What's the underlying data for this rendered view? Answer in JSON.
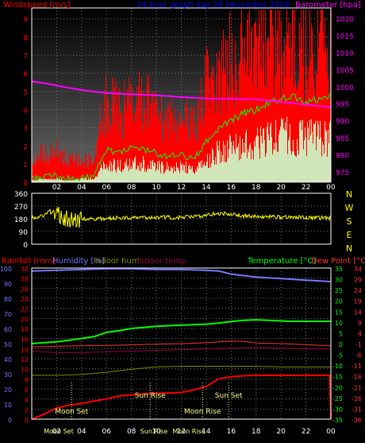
{
  "colors": {
    "wind": "#ff0000",
    "gust_fill": "#ff0000",
    "avg_wind": "#00ff00",
    "wind_white": "#ccffcc",
    "pressure": "#ff00ff",
    "direction": "#ffff00",
    "humidity": "#7777ff",
    "indoor_hum": "#888800",
    "indoor_temp": "#990044",
    "temperature": "#00ff00",
    "dewpoint": "#ff3333",
    "rainfall": "#ff0000",
    "title_blue": "#0000ff",
    "axis_text": "#ffffff",
    "moon_sun": "#ffff88"
  },
  "chart_data": [
    {
      "type": "line",
      "id": "wind_pressure",
      "title": "24-hour graph day 20 December 2018",
      "legend": {
        "left": "Windspeed [m/s]",
        "right": "Barometer [hpa]"
      },
      "x_ticks": [
        "02",
        "04",
        "06",
        "08",
        "10",
        "12",
        "14",
        "16",
        "18",
        "20",
        "22",
        "00"
      ],
      "y_left_ticks": [
        "0",
        "1",
        "2",
        "3",
        "4",
        "5",
        "6",
        "7",
        "8",
        "9"
      ],
      "y_right_ticks": [
        "975",
        "980",
        "985",
        "990",
        "995",
        "1000",
        "1005",
        "1010",
        "1015",
        "1020"
      ],
      "ylim_left": [
        0,
        9.6
      ],
      "ylim_right": [
        972,
        1023
      ],
      "series": [
        {
          "name": "Windspeed",
          "x": [
            0,
            1,
            2,
            3,
            4,
            5,
            5.5,
            6,
            7,
            8,
            9,
            10,
            11,
            12,
            13,
            14,
            15,
            16,
            17,
            18,
            19,
            20,
            21,
            22,
            23,
            24
          ],
          "values": [
            1.2,
            1.5,
            1.6,
            1.0,
            1.2,
            0.9,
            3.0,
            4.0,
            3.5,
            4.0,
            4.2,
            3.4,
            3.0,
            3.2,
            2.8,
            5.0,
            5.5,
            6.2,
            6.8,
            7.2,
            7.5,
            7.0,
            7.2,
            6.6,
            6.8,
            7.1
          ]
        },
        {
          "name": "Average wind",
          "x": [
            0,
            1,
            2,
            3,
            4,
            5,
            5.5,
            6,
            7,
            8,
            9,
            10,
            11,
            12,
            13,
            14,
            15,
            16,
            17,
            18,
            19,
            20,
            21,
            22,
            23,
            24
          ],
          "values": [
            0.2,
            0.3,
            0.3,
            0.2,
            0.3,
            0.4,
            1.2,
            1.8,
            1.6,
            1.9,
            1.8,
            1.6,
            1.4,
            1.5,
            1.3,
            2.2,
            3.0,
            3.4,
            3.8,
            4.0,
            4.4,
            4.6,
            4.7,
            4.4,
            4.6,
            4.7
          ]
        },
        {
          "name": "Barometer",
          "x": [
            0,
            1,
            2,
            3,
            4,
            5,
            6,
            7,
            8,
            9,
            10,
            11,
            12,
            13,
            14,
            15,
            16,
            17,
            18,
            19,
            20,
            21,
            22,
            23,
            24
          ],
          "values": [
            1001.5,
            1001.0,
            1000.3,
            999.6,
            999.0,
            998.5,
            998.1,
            997.9,
            997.7,
            997.6,
            997.4,
            997.2,
            996.9,
            996.7,
            996.5,
            996.4,
            996.4,
            996.3,
            996.2,
            995.9,
            995.5,
            995.1,
            994.7,
            994.3,
            993.9
          ]
        }
      ]
    },
    {
      "type": "scatter",
      "id": "wind_direction",
      "y_ticks": [
        "360",
        "270",
        "180",
        "90",
        "0"
      ],
      "compass": [
        "N",
        "W",
        "S",
        "E",
        "N"
      ],
      "ylim": [
        0,
        360
      ],
      "series": [
        {
          "name": "Wind direction",
          "x": [
            0,
            1,
            1.5,
            2,
            2.5,
            3,
            3.5,
            4,
            5,
            6,
            7,
            8,
            9,
            10,
            11,
            12,
            13,
            14,
            15,
            16,
            17,
            18,
            19,
            20,
            21,
            22,
            23,
            24
          ],
          "values": [
            185,
            200,
            240,
            215,
            190,
            175,
            170,
            180,
            178,
            182,
            186,
            188,
            190,
            192,
            188,
            190,
            195,
            205,
            218,
            212,
            200,
            196,
            194,
            190,
            192,
            188,
            186,
            184
          ]
        }
      ]
    },
    {
      "type": "line",
      "id": "temp_humidity_rain",
      "legend": {
        "rainfall": "Rainfall [mm]",
        "humidity": "Humidity [%]",
        "indoor_hum": "Indoor hum",
        "indoor_temp": "Indoor temp",
        "temperature": "Temperature [°C]",
        "dewpoint": "Dew Point [°C]"
      },
      "x_ticks": [
        "02",
        "04",
        "06",
        "08",
        "10",
        "12",
        "14",
        "16",
        "18",
        "20",
        "22",
        "00"
      ],
      "y_hum_ticks": [
        "100",
        "90",
        "80",
        "70",
        "60",
        "50",
        "40",
        "30",
        "20",
        "10",
        "0"
      ],
      "y_rain_ticks": [
        "30",
        "28",
        "26",
        "24",
        "22",
        "20",
        "18",
        "16",
        "14",
        "12",
        "10",
        "8",
        "6",
        "4",
        "2",
        "0"
      ],
      "y_temp_ticks": [
        "35",
        "30",
        "25",
        "20",
        "15",
        "10",
        "5",
        "0",
        "-5",
        "-10",
        "-15",
        "-20",
        "-25",
        "-30",
        "-35"
      ],
      "y_dew_ticks": [
        "34",
        "29",
        "24",
        "19",
        "14",
        "9",
        "4",
        "-1",
        "-6",
        "-11",
        "-16",
        "-21",
        "-26",
        "-31",
        "-36"
      ],
      "ylim_rain": [
        0,
        30
      ],
      "ylim_temp": [
        -35,
        35
      ],
      "annotations": [
        {
          "label": "Moon Set",
          "hour": 3.2
        },
        {
          "label": "Sun Rise",
          "hour": 9.5
        },
        {
          "label": "Moon Rise",
          "hour": 13.7
        },
        {
          "label": "Sun Set",
          "hour": 15.8
        }
      ],
      "bottom_labels": [
        "Moon Set",
        "Sun Rise",
        "Moon Rise"
      ],
      "series": [
        {
          "name": "Humidity",
          "x": [
            0,
            2,
            4,
            6,
            8,
            10,
            12,
            14,
            15,
            16,
            17,
            18,
            19,
            20,
            21,
            22,
            23,
            24
          ],
          "values": [
            98,
            98.5,
            99,
            99.5,
            99.5,
            99,
            99,
            98.5,
            98,
            96,
            95,
            94,
            93.5,
            93,
            92.5,
            92,
            91.5,
            91
          ]
        },
        {
          "name": "Temperature",
          "x": [
            0,
            1,
            2,
            3,
            4,
            5,
            6,
            7,
            8,
            9,
            10,
            11,
            12,
            13,
            14,
            15,
            16,
            17,
            18,
            19,
            20,
            21,
            22,
            23,
            24
          ],
          "values": [
            0,
            0.4,
            0.8,
            1.6,
            2.4,
            3.2,
            5.2,
            6.0,
            7.0,
            7.5,
            8.0,
            8.3,
            8.5,
            8.8,
            9.0,
            9.5,
            10.2,
            10.8,
            11.0,
            10.8,
            10.5,
            10.3,
            10.3,
            10.3,
            10.3
          ]
        },
        {
          "name": "Dew Point",
          "x": [
            0,
            2,
            4,
            6,
            8,
            10,
            12,
            14,
            15,
            16,
            17,
            18,
            20,
            22,
            24
          ],
          "values": [
            -1.5,
            -1.2,
            -1.0,
            -0.8,
            -0.6,
            -0.3,
            0,
            0.4,
            0.8,
            1.2,
            1.0,
            0.3,
            0,
            -0.5,
            -1.0
          ]
        },
        {
          "name": "Indoor hum",
          "x": [
            0,
            2,
            4,
            6,
            8,
            10,
            12,
            14,
            16,
            18,
            20,
            22,
            24
          ],
          "values": [
            29,
            29,
            29.5,
            31,
            33,
            34.5,
            35,
            35,
            35,
            35,
            34.5,
            34.5,
            34.5
          ]
        },
        {
          "name": "Indoor temp",
          "x": [
            0,
            2,
            4,
            6,
            8,
            10,
            12,
            14,
            16,
            18,
            20,
            22,
            24
          ],
          "values": [
            45,
            44,
            44,
            44.5,
            45,
            45.5,
            46,
            46.5,
            47,
            47.5,
            47,
            46.5,
            46.5
          ]
        },
        {
          "name": "Rainfall",
          "x": [
            0,
            0.5,
            1,
            2,
            3,
            4,
            5,
            6,
            7,
            8,
            9,
            10,
            11,
            12,
            13,
            14,
            15,
            16,
            17,
            18,
            19,
            20,
            21,
            22,
            23,
            23.9,
            24
          ],
          "values": [
            0,
            0.5,
            1.0,
            2.2,
            2.8,
            3.1,
            3.6,
            4.0,
            4.6,
            4.8,
            5.0,
            5.1,
            5.2,
            5.3,
            5.8,
            6.5,
            8.0,
            8.4,
            8.6,
            8.7,
            8.7,
            8.7,
            8.7,
            8.7,
            8.7,
            8.7,
            0
          ]
        }
      ]
    }
  ]
}
